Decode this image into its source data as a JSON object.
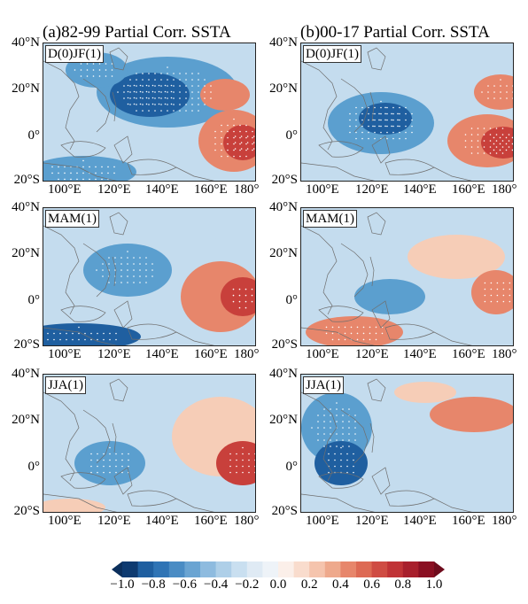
{
  "titles": {
    "left": "(a)82-99 Partial Corr. SSTA",
    "right": "(b)00-17 Partial Corr. SSTA"
  },
  "seasons": [
    "D(0)JF(1)",
    "MAM(1)",
    "JJA(1)"
  ],
  "lat_labels": [
    "40°N",
    "20°N",
    "0°",
    "20°S"
  ],
  "lon_labels": [
    "100°E",
    "120°E",
    "140°E",
    "160°E",
    "180°"
  ],
  "colorbar": {
    "tick_labels": [
      "−1.0",
      "−0.8",
      "−0.6",
      "−0.4",
      "−0.2",
      "0.0",
      "0.2",
      "0.4",
      "0.6",
      "0.8",
      "1.0"
    ],
    "range": [
      -1.0,
      1.0
    ],
    "step": 0.1,
    "colormap": "blue-white-red (RdBu_r)"
  },
  "map_extent": {
    "lon": [
      90,
      180
    ],
    "lat": [
      -20,
      40
    ]
  },
  "colors": {
    "strong_negative": "#1f5fa0",
    "moderate_negative": "#5b9fcf",
    "weak_negative": "#c4dcee",
    "near_zero": "#f7f0ec",
    "weak_positive": "#f6cdb7",
    "moderate_positive": "#e7866b",
    "strong_positive": "#c8403b"
  }
}
